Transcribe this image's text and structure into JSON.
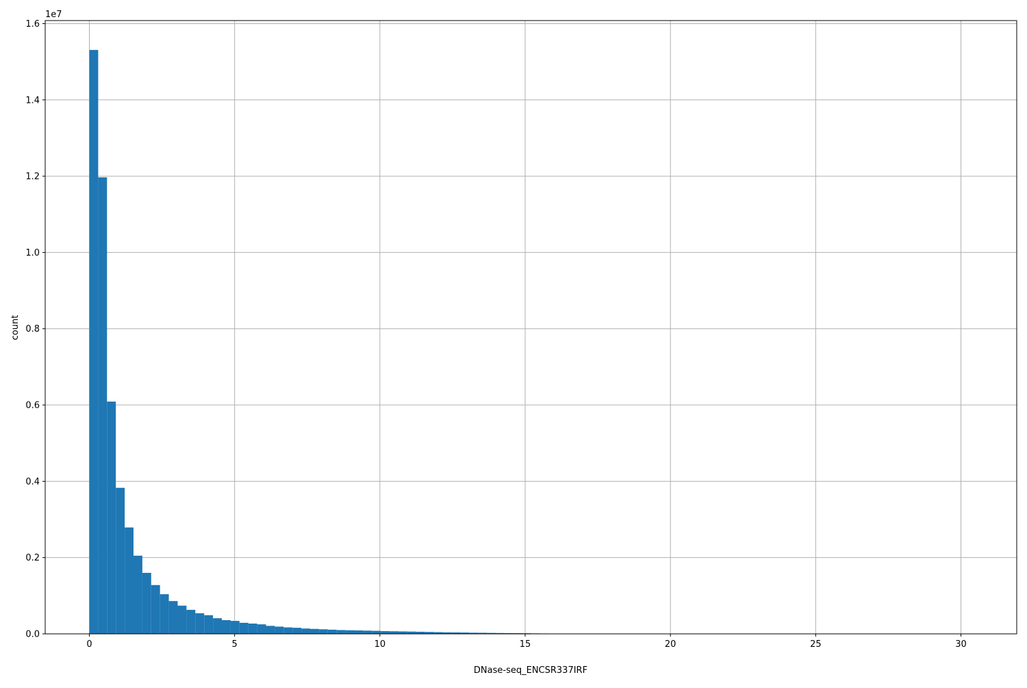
{
  "chart_data": {
    "type": "bar",
    "subtype": "histogram",
    "xlabel": "DNase-seq_ENCSR337IRF",
    "ylabel": "count",
    "y_offset_label": "1e7",
    "bins": 100,
    "bin_range": [
      0,
      30.4
    ],
    "xlim": [
      -1.52,
      31.92
    ],
    "ylim": [
      0,
      16080000
    ],
    "xticks": [
      0,
      5,
      10,
      15,
      20,
      25,
      30
    ],
    "xtick_labels": [
      "0",
      "5",
      "10",
      "15",
      "20",
      "25",
      "30"
    ],
    "yticks": [
      0,
      2000000,
      4000000,
      6000000,
      8000000,
      10000000,
      12000000,
      14000000,
      16000000
    ],
    "ytick_labels": [
      "0.0",
      "0.2",
      "0.4",
      "0.6",
      "0.8",
      "1.0",
      "1.2",
      "1.4",
      "1.6"
    ],
    "grid": true,
    "bar_color": "#1f77b4",
    "grid_color": "#b0b0b0",
    "counts": [
      15310000,
      11970000,
      6090000,
      3830000,
      2790000,
      2050000,
      1600000,
      1280000,
      1040000,
      860000,
      740000,
      630000,
      540000,
      490000,
      410000,
      360000,
      340000,
      290000,
      270000,
      250000,
      210000,
      190000,
      170000,
      160000,
      140000,
      130000,
      120000,
      110000,
      100000,
      95000,
      90000,
      85000,
      80000,
      72000,
      68000,
      64000,
      60000,
      55000,
      50000,
      45000,
      40000,
      38000,
      35000,
      30000,
      28000,
      25000,
      22000,
      20000,
      18000,
      16000,
      12000,
      10000,
      8000,
      6000,
      5000,
      4000,
      3500,
      3000,
      2500,
      2000,
      1800,
      1500,
      1300,
      1100,
      1000,
      900,
      800,
      700,
      600,
      500,
      450,
      400,
      350,
      300,
      260,
      220,
      200,
      180,
      160,
      140,
      120,
      100,
      90,
      80,
      70,
      60,
      50,
      45,
      40,
      35,
      30,
      25,
      20,
      18,
      15,
      12,
      10,
      8,
      5,
      3
    ]
  }
}
